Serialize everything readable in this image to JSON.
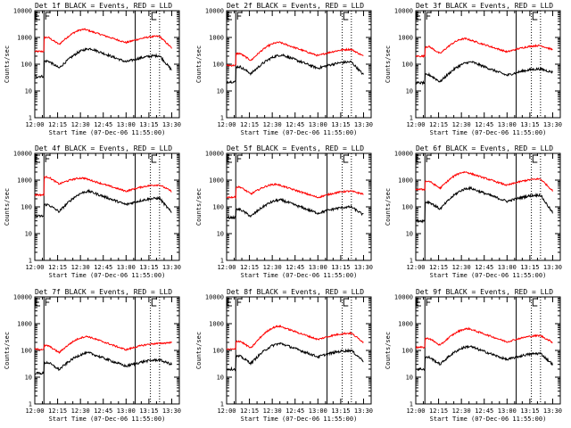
{
  "chart_data": {
    "type": "line",
    "layout": "3x3 grid",
    "yscale": "log",
    "ylim": [
      1,
      10000
    ],
    "yticks": [
      "1",
      "10",
      "100",
      "1000",
      "10000"
    ],
    "xlim": [
      "12:00",
      "13:35"
    ],
    "xticks": [
      "12:00",
      "12:15",
      "12:30",
      "12:45",
      "13:00",
      "13:15",
      "13:30"
    ],
    "ylabel": "Counts/sec",
    "xlabel": "Start Time (07-Dec-06 11:55:00)",
    "grid": false,
    "colors": {
      "events": "#000000",
      "lld": "#ff0000"
    },
    "markers": {
      "solid_x": [
        "12:06",
        "13:06"
      ],
      "dotted_x": [
        "13:16",
        "13:22"
      ],
      "marker_E_x": "12:00",
      "marker_F_x": "12:06",
      "marker_E2_x": "13:17"
    },
    "panels": [
      {
        "title": "Det 1f BLACK = Events, RED = LLD",
        "lld": {
          "start": 300,
          "step": 1000,
          "peak_x": "12:33",
          "peak": 2000,
          "end": 400
        },
        "events": {
          "start": 35,
          "step": 130,
          "peak_x": "12:37",
          "peak": 380,
          "end": 60
        }
      },
      {
        "title": "Det 2f BLACK = Events, RED = LLD",
        "lld": {
          "start": 90,
          "step": 250,
          "peak_x": "12:35",
          "peak": 650,
          "end": 200
        },
        "events": {
          "start": 22,
          "step": 80,
          "peak_x": "12:37",
          "peak": 220,
          "end": 40
        }
      },
      {
        "title": "Det 3f BLACK = Events, RED = LLD",
        "lld": {
          "start": 200,
          "step": 450,
          "peak_x": "12:33",
          "peak": 900,
          "end": 350
        },
        "events": {
          "start": 20,
          "step": 40,
          "peak_x": "12:37",
          "peak": 120,
          "end": 50
        }
      },
      {
        "title": "Det 4f BLACK = Events, RED = LLD",
        "lld": {
          "start": 280,
          "step": 1300,
          "peak_x": "12:32",
          "peak": 1200,
          "end": 380
        },
        "events": {
          "start": 45,
          "step": 120,
          "peak_x": "12:36",
          "peak": 380,
          "end": 60
        }
      },
      {
        "title": "Det 5f BLACK = Events, RED = LLD",
        "lld": {
          "start": 230,
          "step": 550,
          "peak_x": "12:33",
          "peak": 700,
          "end": 300
        },
        "events": {
          "start": 40,
          "step": 80,
          "peak_x": "12:36",
          "peak": 180,
          "end": 50
        }
      },
      {
        "title": "Det 6f BLACK = Events, RED = LLD",
        "lld": {
          "start": 450,
          "step": 900,
          "peak_x": "12:33",
          "peak": 2000,
          "end": 400
        },
        "events": {
          "start": 30,
          "step": 150,
          "peak_x": "12:36",
          "peak": 500,
          "end": 60
        }
      },
      {
        "title": "Det 7f BLACK = Events, RED = LLD",
        "lld": {
          "start": 110,
          "step": 150,
          "peak_x": "12:35",
          "peak": 330,
          "end": 200
        },
        "events": {
          "start": 14,
          "step": 35,
          "peak_x": "12:36",
          "peak": 80,
          "end": 30
        }
      },
      {
        "title": "Det 8f BLACK = Events, RED = LLD",
        "lld": {
          "start": 110,
          "step": 220,
          "peak_x": "12:35",
          "peak": 800,
          "end": 200
        },
        "events": {
          "start": 20,
          "step": 60,
          "peak_x": "12:36",
          "peak": 180,
          "end": 40
        }
      },
      {
        "title": "Det 9f BLACK = Events, RED = LLD",
        "lld": {
          "start": 130,
          "step": 280,
          "peak_x": "12:35",
          "peak": 650,
          "end": 200
        },
        "events": {
          "start": 20,
          "step": 55,
          "peak_x": "12:36",
          "peak": 140,
          "end": 30
        }
      }
    ]
  }
}
